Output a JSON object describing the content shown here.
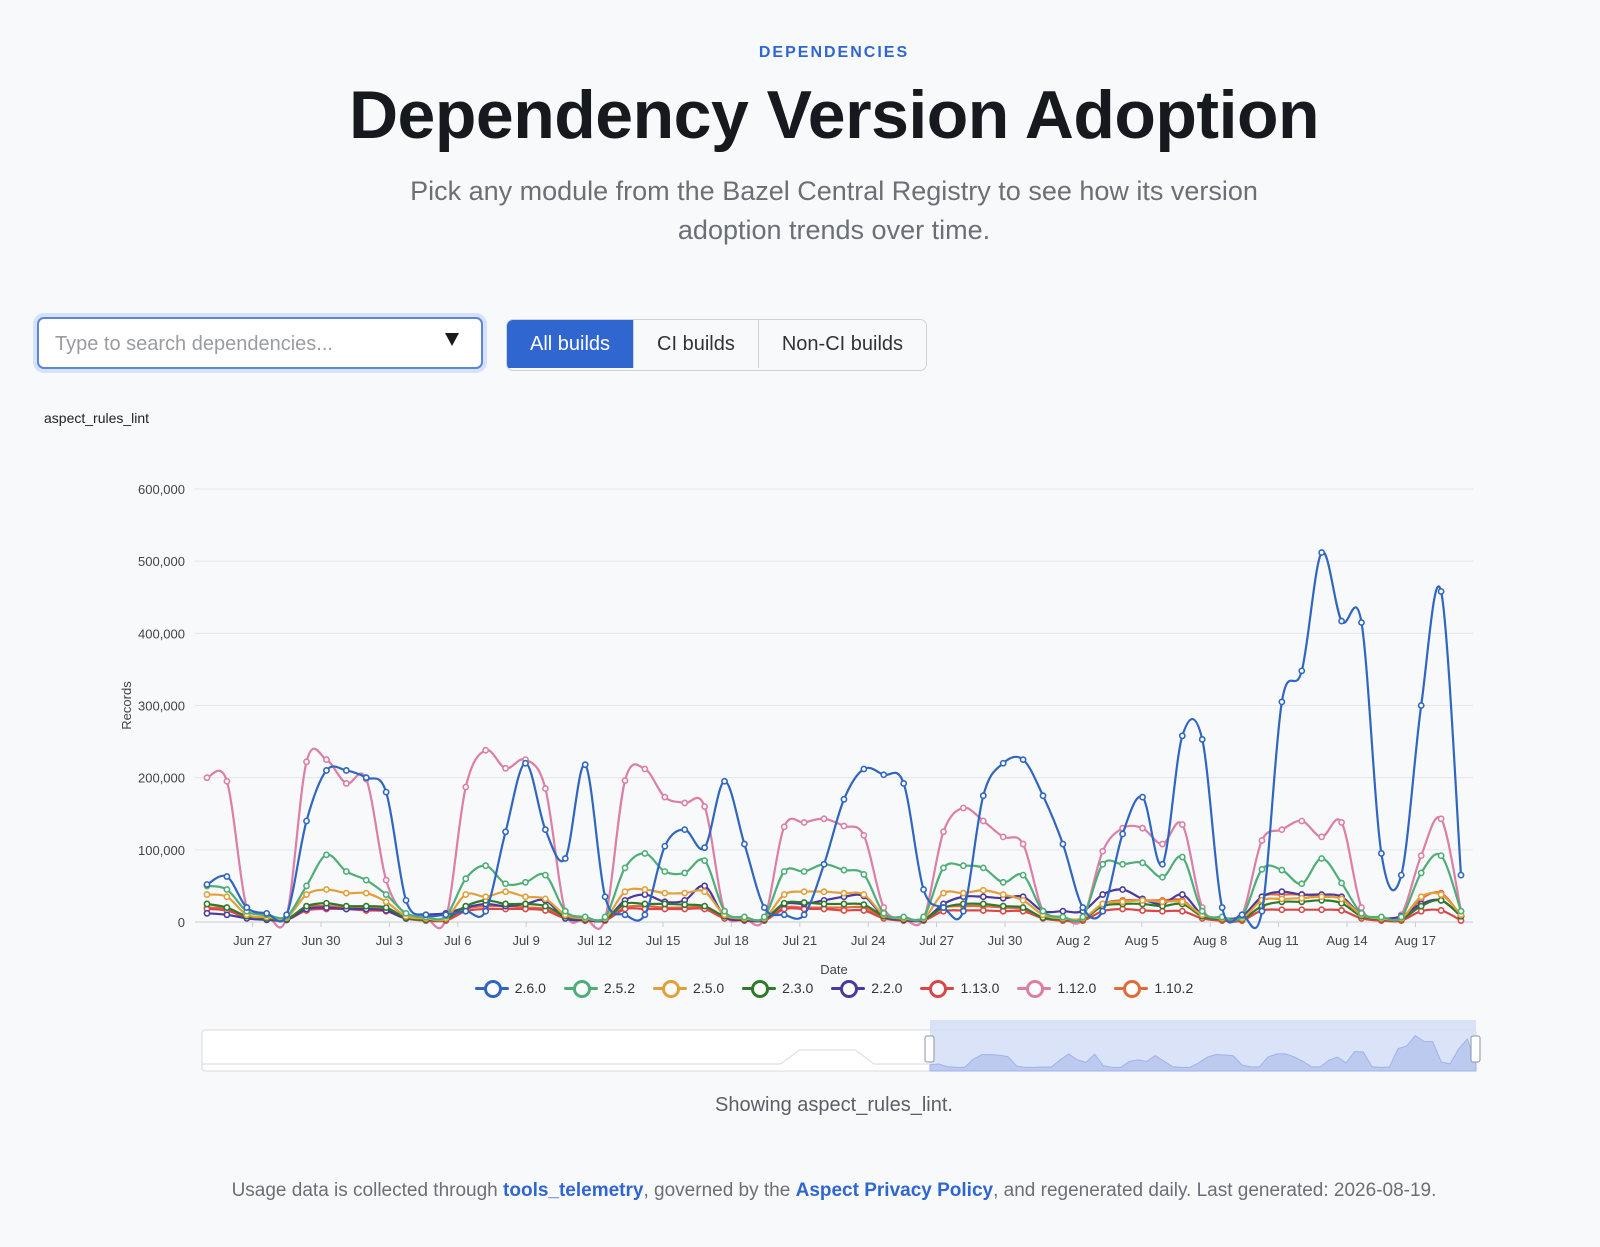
{
  "header": {
    "eyebrow": "DEPENDENCIES",
    "title": "Dependency Version Adoption",
    "subtitle_line1": "Pick any module from the Bazel Central Registry to see how its version",
    "subtitle_line2": "adoption trends over time."
  },
  "search": {
    "placeholder": "Type to search dependencies...",
    "value": ""
  },
  "build_filter": {
    "options": [
      "All builds",
      "CI builds",
      "Non-CI builds"
    ],
    "selected": "All builds"
  },
  "chart_data": {
    "type": "line",
    "title": "aspect_rules_lint",
    "xlabel": "Date",
    "ylabel": "Records",
    "ylim": [
      0,
      600000
    ],
    "yticks": [
      0,
      100000,
      200000,
      300000,
      400000,
      500000,
      600000
    ],
    "ytick_labels": [
      "0",
      "100,000",
      "200,000",
      "300,000",
      "400,000",
      "500,000",
      "600,000"
    ],
    "xtick_labels": [
      "Jun 27",
      "Jun 30",
      "Jul 3",
      "Jul 6",
      "Jul 9",
      "Jul 12",
      "Jul 15",
      "Jul 18",
      "Jul 21",
      "Jul 24",
      "Jul 27",
      "Jul 30",
      "Aug 2",
      "Aug 5",
      "Aug 8",
      "Aug 11",
      "Aug 14",
      "Aug 17"
    ],
    "x_start": "Jun 25",
    "x_end": "Aug 19",
    "grid": true,
    "legend_position": "bottom",
    "series": [
      {
        "name": "2.6.0",
        "color": "#2f66c0",
        "values": [
          52000,
          63000,
          20000,
          12000,
          10000,
          140000,
          210000,
          210000,
          200000,
          180000,
          30000,
          10000,
          10000,
          15000,
          15000,
          125000,
          220000,
          128000,
          88000,
          218000,
          35000,
          10000,
          10000,
          105000,
          128000,
          103000,
          195000,
          108000,
          20000,
          10000,
          10000,
          80000,
          170000,
          212000,
          204000,
          192000,
          45000,
          20000,
          15000,
          175000,
          220000,
          225000,
          175000,
          108000,
          20000,
          15000,
          122000,
          173000,
          80000,
          258000,
          253000,
          20000,
          10000,
          15000,
          305000,
          348000,
          512000,
          417000,
          415000,
          95000,
          65000,
          300000,
          458000,
          65000
        ]
      },
      {
        "name": "2.5.2",
        "color": "#4fae78",
        "values": [
          50000,
          45000,
          15000,
          10000,
          8000,
          50000,
          93000,
          70000,
          58000,
          38000,
          12000,
          7000,
          8000,
          60000,
          78000,
          53000,
          55000,
          65000,
          15000,
          7000,
          7000,
          75000,
          95000,
          70000,
          68000,
          85000,
          15000,
          7000,
          7000,
          70000,
          70000,
          80000,
          72000,
          66000,
          12000,
          7000,
          7000,
          75000,
          78000,
          75000,
          55000,
          65000,
          15000,
          7000,
          7000,
          80000,
          80000,
          82000,
          62000,
          90000,
          15000,
          7000,
          8000,
          73000,
          72000,
          53000,
          88000,
          54000,
          12000,
          7000,
          7000,
          68000,
          92000,
          15000
        ]
      },
      {
        "name": "2.5.0",
        "color": "#e3a03a",
        "values": [
          38000,
          35000,
          10000,
          7000,
          6000,
          38000,
          45000,
          40000,
          40000,
          28000,
          8000,
          5000,
          5000,
          38000,
          35000,
          42000,
          35000,
          32000,
          10000,
          5000,
          5000,
          42000,
          45000,
          40000,
          40000,
          42000,
          10000,
          5000,
          5000,
          38000,
          42000,
          42000,
          40000,
          38000,
          10000,
          5000,
          5000,
          40000,
          40000,
          44000,
          38000,
          30000,
          10000,
          5000,
          5000,
          25000,
          28000,
          30000,
          28000,
          28000,
          10000,
          5000,
          5000,
          30000,
          32000,
          33000,
          35000,
          32000,
          10000,
          5000,
          5000,
          35000,
          38000,
          10000
        ]
      },
      {
        "name": "2.3.0",
        "color": "#2f7a2a",
        "values": [
          25000,
          20000,
          8000,
          5000,
          4000,
          22000,
          26000,
          22000,
          22000,
          20000,
          6000,
          3000,
          4000,
          22000,
          30000,
          25000,
          25000,
          22000,
          8000,
          4000,
          4000,
          25000,
          25000,
          25000,
          24000,
          22000,
          8000,
          4000,
          4000,
          26000,
          27000,
          25000,
          25000,
          24000,
          8000,
          4000,
          4000,
          20000,
          25000,
          25000,
          22000,
          20000,
          6000,
          4000,
          4000,
          22000,
          25000,
          25000,
          22000,
          25000,
          8000,
          4000,
          4000,
          22000,
          28000,
          28000,
          30000,
          26000,
          8000,
          4000,
          4000,
          22000,
          30000,
          8000
        ]
      },
      {
        "name": "2.2.0",
        "color": "#4a3aa0",
        "values": [
          12000,
          10000,
          5000,
          3000,
          3000,
          18000,
          20000,
          18000,
          18000,
          16000,
          5000,
          10000,
          12000,
          20000,
          25000,
          22000,
          25000,
          30000,
          5000,
          3000,
          3000,
          30000,
          38000,
          28000,
          30000,
          50000,
          8000,
          3000,
          3000,
          25000,
          25000,
          30000,
          35000,
          36000,
          8000,
          3000,
          3000,
          25000,
          35000,
          35000,
          33000,
          35000,
          15000,
          15000,
          15000,
          38000,
          45000,
          32000,
          25000,
          38000,
          10000,
          5000,
          8000,
          35000,
          42000,
          38000,
          38000,
          35000,
          10000,
          5000,
          8000,
          25000,
          30000,
          8000
        ]
      },
      {
        "name": "1.13.0",
        "color": "#d94848",
        "values": [
          18000,
          16000,
          6000,
          4000,
          3000,
          16000,
          18000,
          18000,
          16000,
          15000,
          5000,
          2000,
          2000,
          15000,
          18000,
          18000,
          18000,
          16000,
          5000,
          2000,
          2000,
          18000,
          18000,
          18000,
          18000,
          18000,
          5000,
          2000,
          2000,
          18000,
          18000,
          18000,
          16000,
          16000,
          5000,
          2000,
          2000,
          15000,
          16000,
          16000,
          15000,
          15000,
          5000,
          2000,
          2000,
          15000,
          18000,
          16000,
          15000,
          15000,
          5000,
          2000,
          2000,
          16000,
          17000,
          17000,
          17000,
          16000,
          5000,
          2000,
          2000,
          15000,
          16000,
          2000
        ]
      },
      {
        "name": "1.12.0",
        "color": "#dc7ea6",
        "values": [
          200000,
          195000,
          20000,
          10000,
          8000,
          222000,
          225000,
          192000,
          198000,
          58000,
          10000,
          5000,
          5000,
          187000,
          238000,
          213000,
          225000,
          185000,
          15000,
          5000,
          5000,
          196000,
          212000,
          173000,
          165000,
          160000,
          15000,
          5000,
          5000,
          132000,
          138000,
          143000,
          133000,
          120000,
          20000,
          5000,
          5000,
          125000,
          158000,
          140000,
          118000,
          108000,
          15000,
          5000,
          5000,
          98000,
          130000,
          130000,
          108000,
          135000,
          20000,
          5000,
          10000,
          113000,
          128000,
          140000,
          118000,
          138000,
          20000,
          5000,
          10000,
          92000,
          143000,
          15000
        ]
      },
      {
        "name": "1.10.2",
        "color": "#e06a3a",
        "values": [
          20000,
          18000,
          6000,
          4000,
          3000,
          20000,
          22000,
          20000,
          20000,
          17000,
          5000,
          3000,
          3000,
          18000,
          22000,
          22000,
          20000,
          18000,
          6000,
          3000,
          3000,
          20000,
          22000,
          20000,
          20000,
          20000,
          6000,
          3000,
          3000,
          20000,
          20000,
          20000,
          20000,
          20000,
          6000,
          3000,
          3000,
          20000,
          22000,
          22000,
          20000,
          18000,
          6000,
          3000,
          3000,
          25000,
          30000,
          30000,
          30000,
          30000,
          8000,
          3000,
          3000,
          35000,
          38000,
          38000,
          35000,
          32000,
          8000,
          3000,
          3000,
          32000,
          40000,
          8000
        ]
      }
    ]
  },
  "status": {
    "showing": "Showing aspect_rules_lint."
  },
  "footer": {
    "text_before": "Usage data is collected through ",
    "link1": "tools_telemetry",
    "text_mid": ", governed by the ",
    "link2": "Aspect Privacy Policy",
    "text_after": ", and regenerated daily. Last generated: 2026-08-19."
  }
}
